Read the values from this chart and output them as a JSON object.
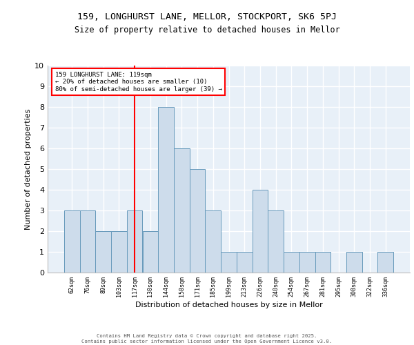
{
  "title_line1": "159, LONGHURST LANE, MELLOR, STOCKPORT, SK6 5PJ",
  "title_line2": "Size of property relative to detached houses in Mellor",
  "xlabel": "Distribution of detached houses by size in Mellor",
  "ylabel": "Number of detached properties",
  "footer_line1": "Contains HM Land Registry data © Crown copyright and database right 2025.",
  "footer_line2": "Contains public sector information licensed under the Open Government Licence v3.0.",
  "categories": [
    "62sqm",
    "76sqm",
    "89sqm",
    "103sqm",
    "117sqm",
    "130sqm",
    "144sqm",
    "158sqm",
    "171sqm",
    "185sqm",
    "199sqm",
    "213sqm",
    "226sqm",
    "240sqm",
    "254sqm",
    "267sqm",
    "281sqm",
    "295sqm",
    "308sqm",
    "322sqm",
    "336sqm"
  ],
  "values": [
    3,
    3,
    2,
    2,
    3,
    2,
    8,
    6,
    5,
    3,
    1,
    1,
    4,
    3,
    1,
    1,
    1,
    0,
    1,
    0,
    1
  ],
  "bar_color": "#cddceb",
  "bar_edge_color": "#6699bb",
  "red_line_index": 4,
  "annotation_text": "159 LONGHURST LANE: 119sqm\n← 20% of detached houses are smaller (10)\n80% of semi-detached houses are larger (39) →",
  "annotation_box_color": "white",
  "annotation_box_edge": "red",
  "ylim": [
    0,
    10
  ],
  "yticks": [
    0,
    1,
    2,
    3,
    4,
    5,
    6,
    7,
    8,
    9,
    10
  ],
  "background_color": "#e8f0f8",
  "grid_color": "white",
  "fig_bg": "white"
}
